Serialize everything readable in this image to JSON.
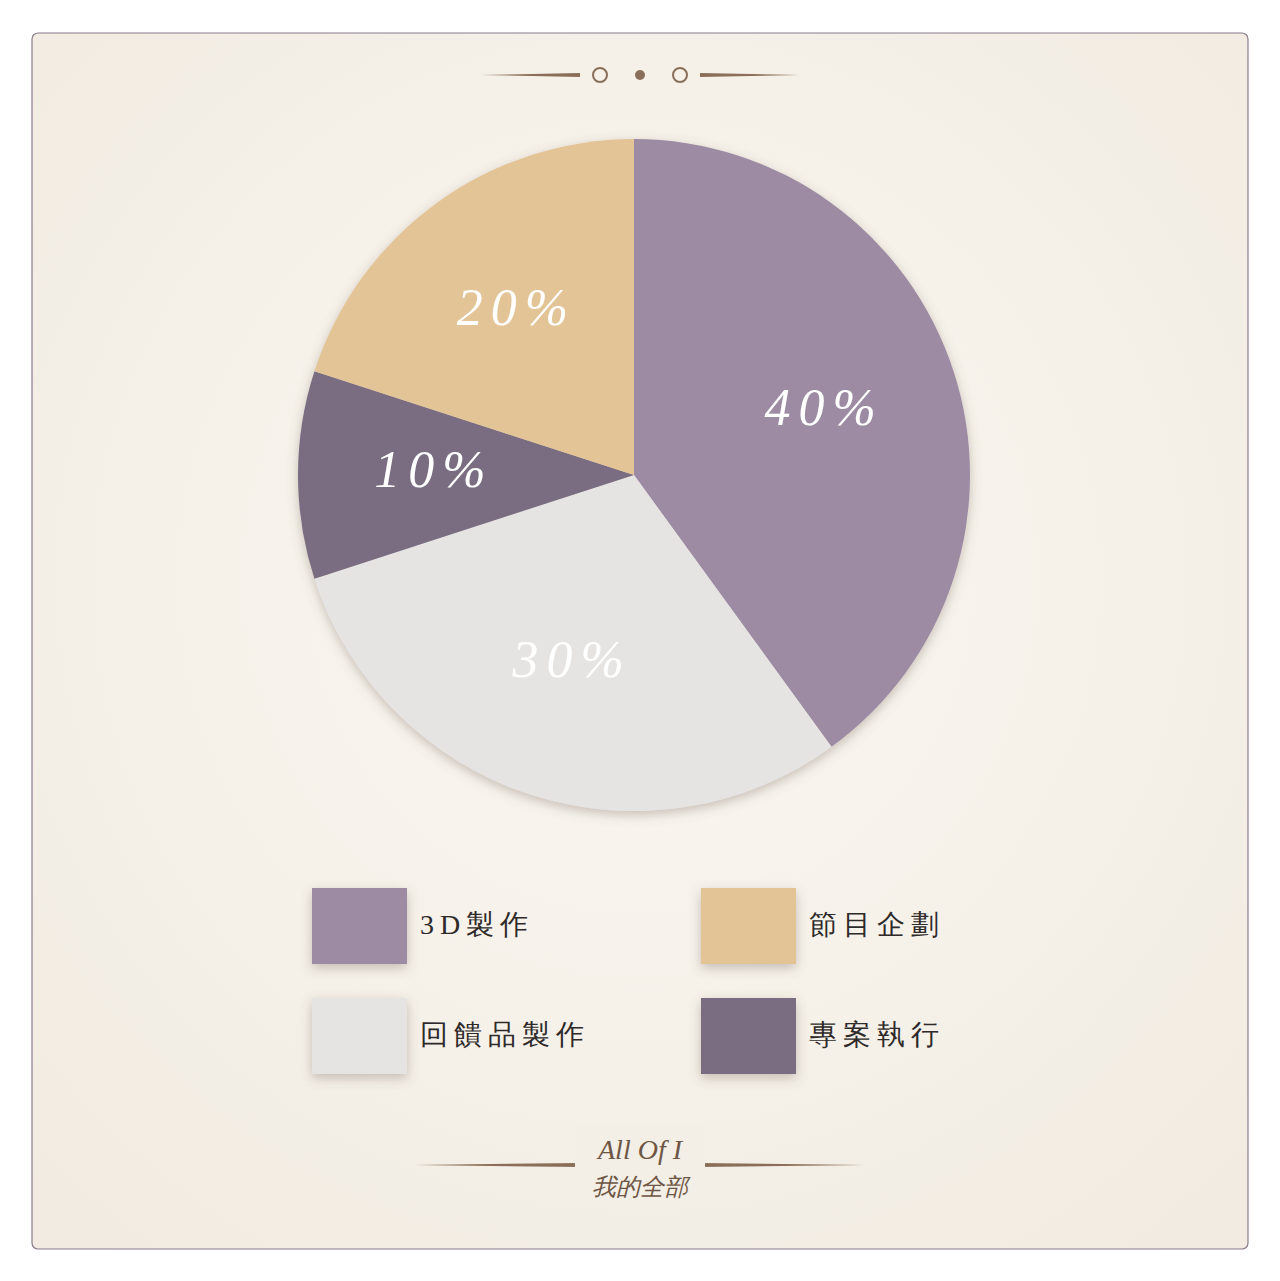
{
  "chart_data": {
    "type": "pie",
    "categories": [
      "3D製作",
      "回饋品製作",
      "專案執行",
      "節目企劃"
    ],
    "values": [
      40,
      30,
      10,
      20
    ],
    "value_labels": [
      "40%",
      "30%",
      "10%",
      "20%"
    ],
    "colors": [
      "#9d8ba3",
      "#e6e4e3",
      "#7a6d82",
      "#e3c497"
    ],
    "data_labels": true,
    "legend": "bottom",
    "annotations": [
      "All Of I",
      "我的全部"
    ]
  }
}
